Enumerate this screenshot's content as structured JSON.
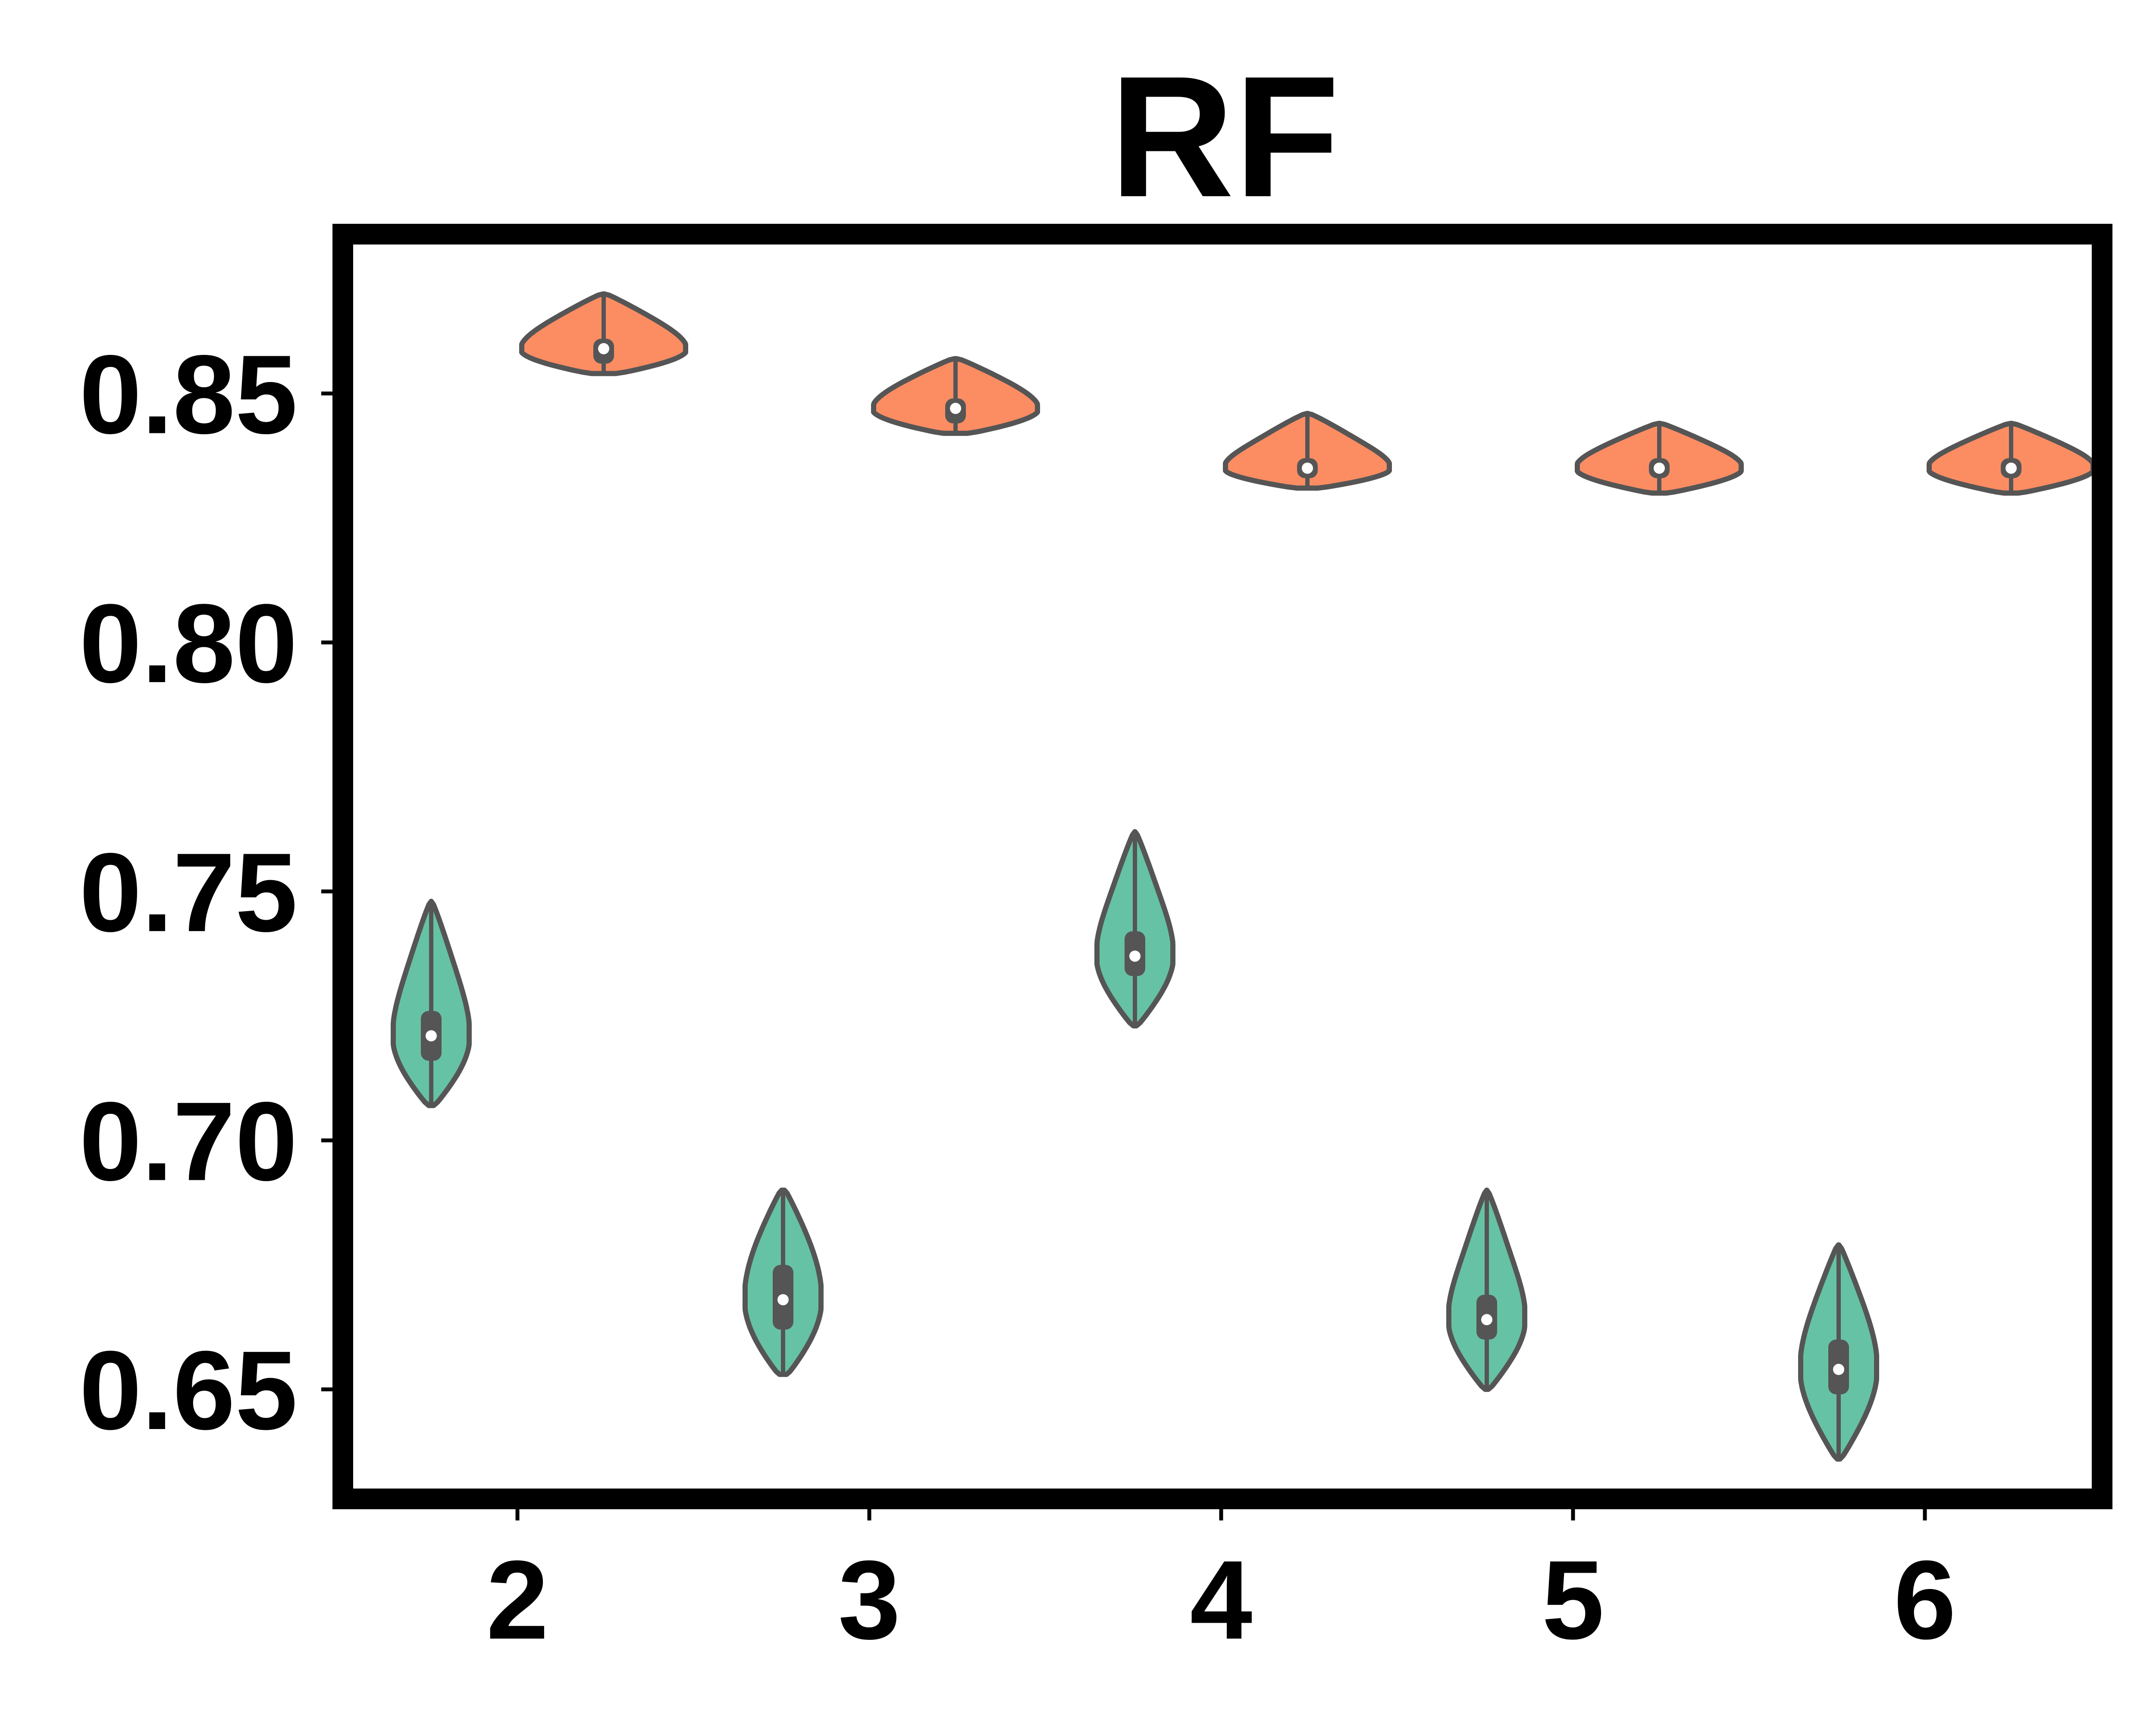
{
  "chart_data": {
    "type": "violin",
    "title": "RF",
    "xlabel": "",
    "ylabel": "",
    "categories": [
      "2",
      "3",
      "4",
      "5",
      "6"
    ],
    "yticks": [
      "0.65",
      "0.70",
      "0.75",
      "0.80",
      "0.85"
    ],
    "ylim": [
      0.628,
      0.882
    ],
    "grid": false,
    "legend": "none",
    "series": [
      {
        "color": "#66c2a5",
        "values": [
          {
            "category": "2",
            "min": 0.707,
            "q1": 0.716,
            "median": 0.721,
            "q3": 0.726,
            "max": 0.748
          },
          {
            "category": "3",
            "min": 0.653,
            "q1": 0.662,
            "median": 0.668,
            "q3": 0.675,
            "max": 0.69
          },
          {
            "category": "4",
            "min": 0.723,
            "q1": 0.733,
            "median": 0.737,
            "q3": 0.742,
            "max": 0.762
          },
          {
            "category": "5",
            "min": 0.65,
            "q1": 0.66,
            "median": 0.664,
            "q3": 0.669,
            "max": 0.69
          },
          {
            "category": "6",
            "min": 0.636,
            "q1": 0.649,
            "median": 0.654,
            "q3": 0.66,
            "max": 0.679
          }
        ]
      },
      {
        "color": "#fc8d62",
        "values": [
          {
            "category": "2",
            "min": 0.854,
            "q1": 0.856,
            "median": 0.859,
            "q3": 0.861,
            "max": 0.87
          },
          {
            "category": "3",
            "min": 0.842,
            "q1": 0.844,
            "median": 0.847,
            "q3": 0.849,
            "max": 0.857
          },
          {
            "category": "4",
            "min": 0.831,
            "q1": 0.833,
            "median": 0.835,
            "q3": 0.837,
            "max": 0.846
          },
          {
            "category": "5",
            "min": 0.83,
            "q1": 0.833,
            "median": 0.835,
            "q3": 0.837,
            "max": 0.844
          },
          {
            "category": "6",
            "min": 0.83,
            "q1": 0.833,
            "median": 0.835,
            "q3": 0.837,
            "max": 0.844
          }
        ]
      }
    ],
    "colors": {
      "median_dot": "#ffffff",
      "inner_box": "#555555",
      "outline": "#555555",
      "frame": "#000000"
    }
  }
}
